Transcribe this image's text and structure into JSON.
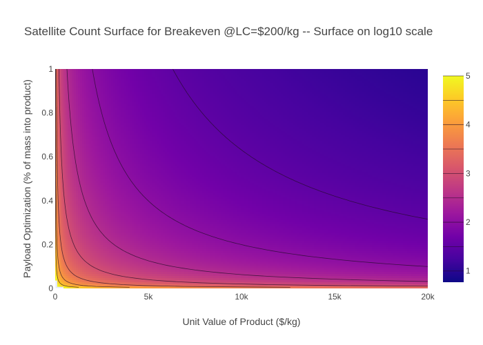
{
  "chart_data": {
    "type": "heatmap",
    "subtype": "filled-contour surface",
    "title": "Satellite Count Surface for Breakeven @LC=$200/kg -- Surface on log10 scale",
    "xlabel": "Unit Value of Product ($/kg)",
    "ylabel": "Payload Optimization (% of mass into product)",
    "xlim": [
      0,
      20000
    ],
    "ylim": [
      0,
      1
    ],
    "x_ticks": [
      {
        "value": 0,
        "label": "0"
      },
      {
        "value": 5000,
        "label": "5k"
      },
      {
        "value": 10000,
        "label": "10k"
      },
      {
        "value": 15000,
        "label": "15k"
      },
      {
        "value": 20000,
        "label": "20k"
      }
    ],
    "y_ticks": [
      {
        "value": 0,
        "label": "0"
      },
      {
        "value": 0.2,
        "label": "0.2"
      },
      {
        "value": 0.4,
        "label": "0.4"
      },
      {
        "value": 0.6,
        "label": "0.6"
      },
      {
        "value": 0.8,
        "label": "0.8"
      },
      {
        "value": 1,
        "label": "1"
      }
    ],
    "z_model": {
      "formula": "z = k - log10(x * y)",
      "k": 5.3,
      "description": "log10 of satellite count required to break even; z ~ 1 at top-right, rising steeply toward the axes; cells above 5 are blank"
    },
    "colorbar": {
      "range": [
        0.77,
        5.0
      ],
      "ticks": [
        {
          "value": 1,
          "label": "1"
        },
        {
          "value": 2,
          "label": "2"
        },
        {
          "value": 3,
          "label": "3"
        },
        {
          "value": 4,
          "label": "4"
        },
        {
          "value": 5,
          "label": "5"
        }
      ],
      "contour_step": 0.5,
      "colorscale": [
        "#0d0887",
        "#46039f",
        "#7201a8",
        "#9c179e",
        "#bd3786",
        "#d8576b",
        "#ed7953",
        "#fb9f3a",
        "#fdca26",
        "#f0f921"
      ]
    },
    "contour_levels": [
      1.0,
      1.5,
      2.0,
      2.5,
      3.0,
      3.5,
      4.0,
      4.5
    ],
    "grid": true,
    "plot_background": "#e5ecf6",
    "gridline_color": "#ffffff"
  }
}
